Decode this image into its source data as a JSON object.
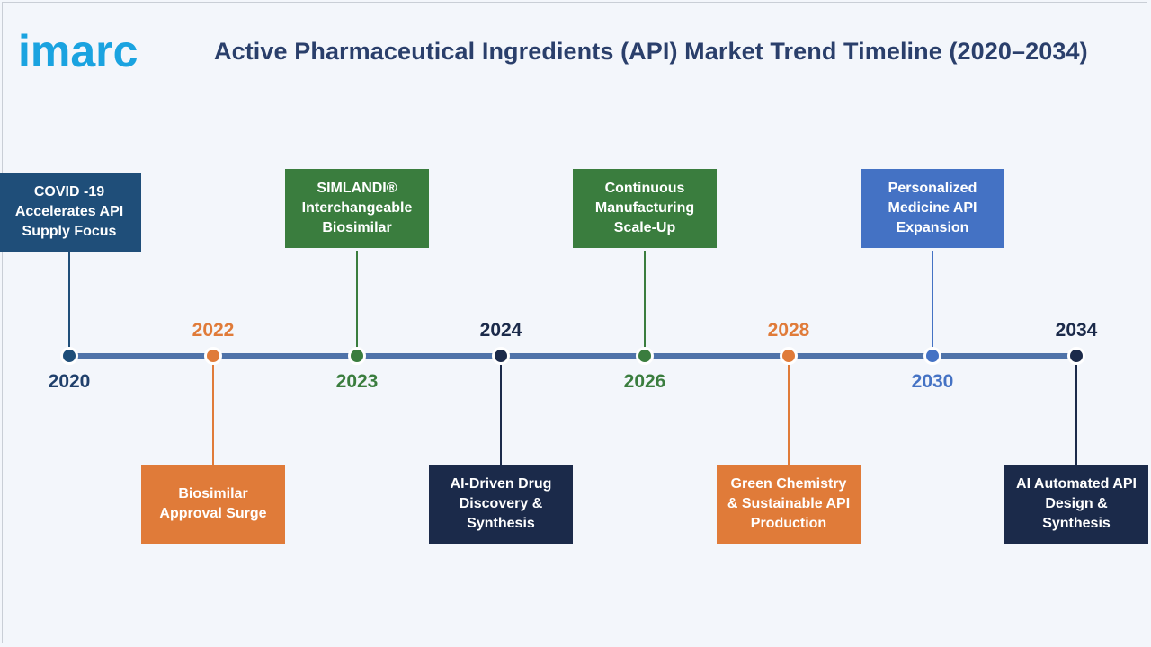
{
  "brand": {
    "logo_text": "imarc",
    "color": "#1aa3e0"
  },
  "title": "Active Pharmaceutical Ingredients (API) Market Trend Timeline (2020–2034)",
  "colors": {
    "axis": "#4f73a9",
    "dark_blue": "#1f4e79",
    "green": "#3a7d3e",
    "orange": "#e07b39",
    "navy": "#1b2a4a",
    "light_blue": "#4472c4"
  },
  "events": [
    {
      "year": "2020",
      "label": "COVID -19\nAccelerates API\nSupply Focus",
      "color": "#1f4e79",
      "year_color": "#1f3f6b",
      "side": "top"
    },
    {
      "year": "2022",
      "label": "Biosimilar\nApproval Surge",
      "color": "#e07b39",
      "year_color": "#e07b39",
      "side": "bottom"
    },
    {
      "year": "2023",
      "label": "SIMLANDI®\nInterchangeable\nBiosimilar",
      "color": "#3a7d3e",
      "year_color": "#3a7d3e",
      "side": "top"
    },
    {
      "year": "2024",
      "label": "AI-Driven Drug\nDiscovery &\nSynthesis",
      "color": "#1b2a4a",
      "year_color": "#1b2a4a",
      "side": "bottom"
    },
    {
      "year": "2026",
      "label": "Continuous\nManufacturing\nScale-Up",
      "color": "#3a7d3e",
      "year_color": "#3a7d3e",
      "side": "top"
    },
    {
      "year": "2028",
      "label": "Green Chemistry\n& Sustainable API\nProduction",
      "color": "#e07b39",
      "year_color": "#e07b39",
      "side": "bottom"
    },
    {
      "year": "2030",
      "label": "Personalized\nMedicine API\nExpansion",
      "color": "#4472c4",
      "year_color": "#4472c4",
      "side": "top"
    },
    {
      "year": "2034",
      "label": "AI Automated API\nDesign &\nSynthesis",
      "color": "#1b2a4a",
      "year_color": "#1b2a4a",
      "side": "bottom"
    }
  ]
}
